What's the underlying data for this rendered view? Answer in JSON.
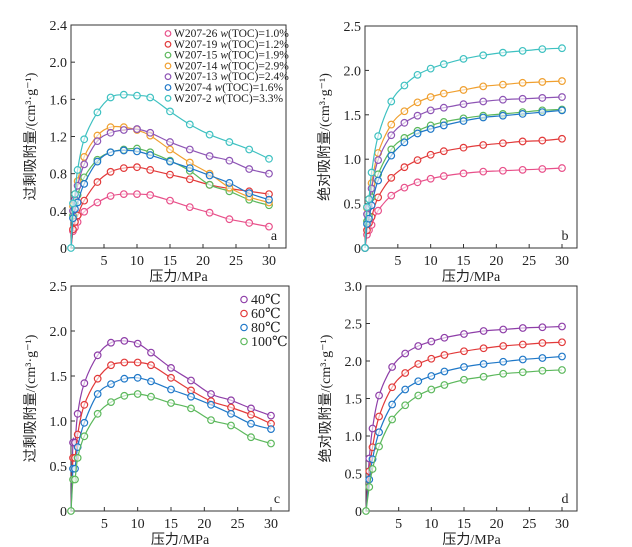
{
  "chart_data": [
    {
      "id": "a",
      "type": "line",
      "panel_label": "a",
      "xlabel": "压力/MPa",
      "ylabel": "过剩吸附量/(cm³·g⁻¹)",
      "xlim": [
        0,
        32
      ],
      "ylim": [
        0,
        2.4
      ],
      "xticks": [
        5,
        10,
        15,
        20,
        25,
        30
      ],
      "yticks": [
        0,
        0.4,
        0.8,
        1.2,
        1.6,
        2.0,
        2.4
      ],
      "ytick_labels": [
        "0",
        "0.4",
        "0.8",
        "1.2",
        "1.6",
        "2.0",
        "2.4"
      ],
      "legend_position": "top-right",
      "x": [
        0,
        0.3,
        0.6,
        1,
        2,
        4,
        6,
        8,
        10,
        12,
        15,
        18,
        21,
        24,
        27,
        30
      ],
      "series": [
        {
          "name": "W207-26 w(TOC)=1.0%",
          "color": "#e8508a",
          "values": [
            0,
            0.18,
            0.22,
            0.28,
            0.39,
            0.49,
            0.56,
            0.58,
            0.58,
            0.57,
            0.51,
            0.44,
            0.38,
            0.31,
            0.27,
            0.23
          ]
        },
        {
          "name": "W207-19 w(TOC)=1.2%",
          "color": "#e23a3a",
          "values": [
            0,
            0.2,
            0.28,
            0.35,
            0.51,
            0.71,
            0.82,
            0.86,
            0.87,
            0.84,
            0.79,
            0.74,
            0.68,
            0.64,
            0.61,
            0.58
          ]
        },
        {
          "name": "W207-15 w(TOC)=1.9%",
          "color": "#5cb85c",
          "values": [
            0,
            0.35,
            0.48,
            0.57,
            0.76,
            0.95,
            1.03,
            1.06,
            1.07,
            1.03,
            0.94,
            0.83,
            0.68,
            0.61,
            0.52,
            0.46
          ]
        },
        {
          "name": "W207-14 w(TOC)=2.9%",
          "color": "#f0a030",
          "values": [
            0,
            0.45,
            0.58,
            0.72,
            0.98,
            1.21,
            1.3,
            1.3,
            1.27,
            1.21,
            1.06,
            0.92,
            0.8,
            0.65,
            0.55,
            0.49
          ]
        },
        {
          "name": "W207-13 w(TOC)=2.4%",
          "color": "#8e55b5",
          "values": [
            0,
            0.4,
            0.52,
            0.67,
            0.9,
            1.15,
            1.24,
            1.27,
            1.28,
            1.24,
            1.14,
            1.06,
            0.99,
            0.94,
            0.85,
            0.8
          ]
        },
        {
          "name": "W207-4 w(TOC)=1.6%",
          "color": "#1f78c8",
          "values": [
            0,
            0.32,
            0.42,
            0.49,
            0.69,
            0.93,
            1.03,
            1.05,
            1.04,
            1.0,
            0.93,
            0.86,
            0.78,
            0.7,
            0.59,
            0.52
          ]
        },
        {
          "name": "W207-2 w(TOC)=3.3%",
          "color": "#3ec1c1",
          "values": [
            0,
            0.48,
            0.58,
            0.84,
            1.17,
            1.46,
            1.62,
            1.65,
            1.64,
            1.62,
            1.47,
            1.33,
            1.22,
            1.14,
            1.06,
            0.96
          ]
        }
      ]
    },
    {
      "id": "b",
      "type": "line",
      "panel_label": "b",
      "xlabel": "压力/MPa",
      "ylabel": "绝对吸附量/(cm³·g⁻¹)",
      "xlim": [
        0,
        32
      ],
      "ylim": [
        0,
        2.5
      ],
      "xticks": [
        5,
        10,
        15,
        20,
        25,
        30
      ],
      "yticks": [
        0,
        0.5,
        1.0,
        1.5,
        2.0,
        2.5
      ],
      "ytick_labels": [
        "0",
        "0.5",
        "1.0",
        "1.5",
        "2.0",
        "2.5"
      ],
      "x": [
        0,
        0.3,
        0.6,
        1,
        2,
        4,
        6,
        8,
        10,
        12,
        15,
        18,
        21,
        24,
        27,
        30
      ],
      "series": [
        {
          "name": "W207-26 w(TOC)=1.0%",
          "color": "#e8508a",
          "values": [
            0,
            0.15,
            0.2,
            0.26,
            0.42,
            0.59,
            0.68,
            0.74,
            0.78,
            0.81,
            0.84,
            0.86,
            0.87,
            0.88,
            0.89,
            0.9
          ]
        },
        {
          "name": "W207-19 w(TOC)=1.2%",
          "color": "#e23a3a",
          "values": [
            0,
            0.2,
            0.28,
            0.35,
            0.57,
            0.79,
            0.91,
            0.99,
            1.05,
            1.09,
            1.13,
            1.16,
            1.18,
            1.2,
            1.21,
            1.23
          ]
        },
        {
          "name": "W207-15 w(TOC)=1.9%",
          "color": "#5cb85c",
          "values": [
            0,
            0.3,
            0.36,
            0.57,
            0.83,
            1.11,
            1.24,
            1.32,
            1.38,
            1.42,
            1.46,
            1.49,
            1.51,
            1.53,
            1.55,
            1.56
          ]
        },
        {
          "name": "W207-14 w(TOC)=2.9%",
          "color": "#f0a030",
          "values": [
            0,
            0.45,
            0.55,
            0.73,
            1.07,
            1.39,
            1.54,
            1.64,
            1.7,
            1.74,
            1.78,
            1.82,
            1.84,
            1.86,
            1.87,
            1.88
          ]
        },
        {
          "name": "W207-13 w(TOC)=2.4%",
          "color": "#8e55b5",
          "values": [
            0,
            0.38,
            0.46,
            0.67,
            0.99,
            1.27,
            1.41,
            1.49,
            1.55,
            1.58,
            1.62,
            1.65,
            1.67,
            1.68,
            1.69,
            1.7
          ]
        },
        {
          "name": "W207-4 w(TOC)=1.6%",
          "color": "#1f78c8",
          "values": [
            0,
            0.27,
            0.33,
            0.48,
            0.76,
            1.04,
            1.19,
            1.29,
            1.34,
            1.38,
            1.43,
            1.47,
            1.49,
            1.51,
            1.53,
            1.55
          ]
        },
        {
          "name": "W207-2 w(TOC)=3.3%",
          "color": "#3ec1c1",
          "values": [
            0,
            0.46,
            0.55,
            0.85,
            1.26,
            1.65,
            1.83,
            1.95,
            2.02,
            2.07,
            2.13,
            2.17,
            2.2,
            2.22,
            2.24,
            2.25
          ]
        }
      ]
    },
    {
      "id": "c",
      "type": "line",
      "panel_label": "c",
      "xlabel": "压力/MPa",
      "ylabel": "过剩吸附量/(cm³·g⁻¹)",
      "xlim": [
        0,
        32
      ],
      "ylim": [
        0,
        2.5
      ],
      "xticks": [
        5,
        10,
        15,
        20,
        25,
        30
      ],
      "yticks": [
        0,
        0.5,
        1.0,
        1.5,
        2.0,
        2.5
      ],
      "ytick_labels": [
        "0",
        "0.5",
        "1.0",
        "1.5",
        "2.0",
        "2.5"
      ],
      "legend_position": "top-right",
      "x": [
        0,
        0.3,
        0.6,
        1,
        2,
        4,
        6,
        8,
        10,
        12,
        15,
        18,
        21,
        24,
        27,
        30
      ],
      "series": [
        {
          "name": "40℃",
          "color": "#8e3ea8",
          "values": [
            0,
            0.76,
            0.76,
            1.08,
            1.42,
            1.73,
            1.87,
            1.89,
            1.86,
            1.76,
            1.59,
            1.45,
            1.3,
            1.23,
            1.14,
            1.06
          ]
        },
        {
          "name": "60℃",
          "color": "#e23a3a",
          "values": [
            0,
            0.59,
            0.59,
            0.85,
            1.18,
            1.47,
            1.62,
            1.65,
            1.65,
            1.62,
            1.48,
            1.34,
            1.22,
            1.15,
            1.07,
            0.97
          ]
        },
        {
          "name": "80℃",
          "color": "#1f78c8",
          "values": [
            0,
            0.47,
            0.47,
            0.71,
            0.98,
            1.3,
            1.41,
            1.47,
            1.48,
            1.44,
            1.35,
            1.27,
            1.18,
            1.08,
            0.97,
            0.91
          ]
        },
        {
          "name": "100℃",
          "color": "#5cb85c",
          "values": [
            0,
            0.35,
            0.35,
            0.59,
            0.83,
            1.08,
            1.21,
            1.28,
            1.3,
            1.27,
            1.2,
            1.14,
            1.01,
            0.95,
            0.82,
            0.75
          ]
        }
      ]
    },
    {
      "id": "d",
      "type": "line",
      "panel_label": "d",
      "xlabel": "压力/MPa",
      "ylabel": "绝对吸附量/(cm³·g⁻¹)",
      "xlim": [
        0,
        32
      ],
      "ylim": [
        0,
        3.0
      ],
      "xticks": [
        5,
        10,
        15,
        20,
        25,
        30
      ],
      "yticks": [
        0,
        0.5,
        1.0,
        1.5,
        2.0,
        2.5,
        3.0
      ],
      "ytick_labels": [
        "0",
        "0.5",
        "1.0",
        "1.5",
        "2.0",
        "2.5",
        "3.0"
      ],
      "x": [
        0,
        0.5,
        1,
        2,
        4,
        6,
        8,
        10,
        12,
        15,
        18,
        21,
        24,
        27,
        30
      ],
      "series": [
        {
          "name": "40℃",
          "color": "#8e3ea8",
          "values": [
            0,
            0.7,
            1.1,
            1.54,
            1.92,
            2.1,
            2.2,
            2.26,
            2.31,
            2.36,
            2.4,
            2.42,
            2.44,
            2.45,
            2.46
          ]
        },
        {
          "name": "60℃",
          "color": "#e23a3a",
          "values": [
            0,
            0.53,
            0.85,
            1.26,
            1.65,
            1.84,
            1.96,
            2.03,
            2.08,
            2.13,
            2.17,
            2.2,
            2.22,
            2.24,
            2.25
          ]
        },
        {
          "name": "80℃",
          "color": "#1f78c8",
          "values": [
            0,
            0.42,
            0.69,
            1.05,
            1.42,
            1.62,
            1.73,
            1.8,
            1.86,
            1.92,
            1.96,
            1.99,
            2.02,
            2.04,
            2.06
          ]
        },
        {
          "name": "100℃",
          "color": "#5cb85c",
          "values": [
            0,
            0.32,
            0.56,
            0.86,
            1.22,
            1.41,
            1.54,
            1.62,
            1.68,
            1.75,
            1.79,
            1.83,
            1.85,
            1.87,
            1.88
          ]
        }
      ]
    }
  ]
}
